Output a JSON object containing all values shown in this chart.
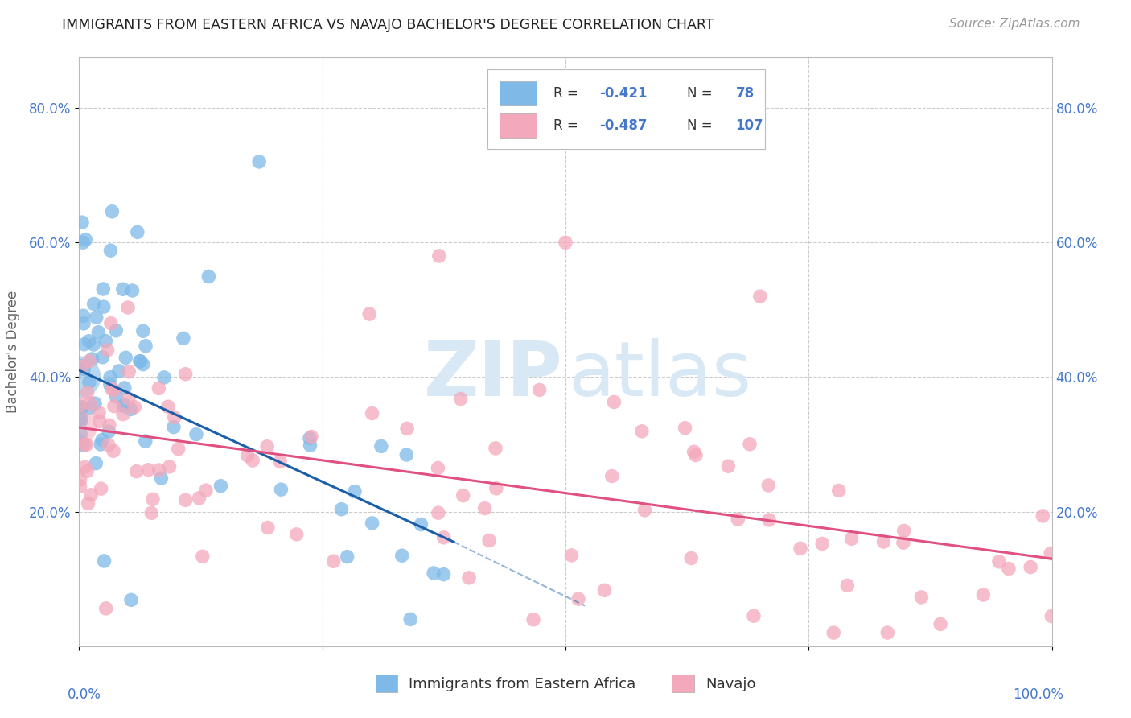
{
  "title": "IMMIGRANTS FROM EASTERN AFRICA VS NAVAJO BACHELOR'S DEGREE CORRELATION CHART",
  "source": "Source: ZipAtlas.com",
  "ylabel": "Bachelor's Degree",
  "legend_label_blue": "Immigrants from Eastern Africa",
  "legend_label_pink": "Navajo",
  "blue_color": "#7EB9E8",
  "pink_color": "#F4A8BB",
  "blue_line_color": "#1A5FA8",
  "pink_line_color": "#E05080",
  "background_color": "#FFFFFF",
  "grid_color": "#CCCCCC",
  "axis_label_color": "#4477CC",
  "title_color": "#222222",
  "xlim": [
    0,
    1.0
  ],
  "ylim": [
    0,
    0.875
  ],
  "ytick_vals": [
    0.2,
    0.4,
    0.6,
    0.8
  ],
  "xtick_vals": [
    0.0,
    0.25,
    0.5,
    0.75,
    1.0
  ],
  "blue_trendline_x": [
    0.0,
    0.385
  ],
  "blue_trendline_y": [
    0.41,
    0.155
  ],
  "pink_trendline_x": [
    0.0,
    1.0
  ],
  "pink_trendline_y": [
    0.325,
    0.13
  ],
  "dashed_line_x": [
    0.385,
    0.52
  ],
  "dashed_line_y": [
    0.155,
    0.06
  ]
}
